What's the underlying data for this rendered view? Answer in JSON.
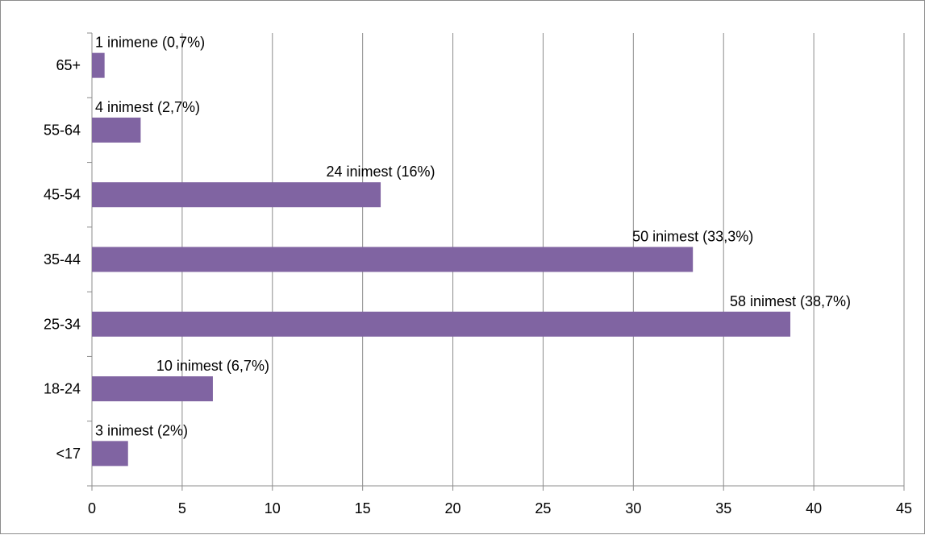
{
  "chart_data": {
    "type": "bar",
    "orientation": "horizontal",
    "categories": [
      "<17",
      "18-24",
      "25-34",
      "35-44",
      "45-54",
      "55-64",
      "65+"
    ],
    "values": [
      2,
      6.7,
      38.7,
      33.3,
      16,
      2.7,
      0.7
    ],
    "data_labels": [
      "3 inimest (2%)",
      "10 inimest (6,7%)",
      "58 inimest (38,7%)",
      "50 inimest (33,3%)",
      "24 inimest (16%)",
      "4 inimest (2,7%)",
      "1 inimene (0,7%)"
    ],
    "xlim": [
      0,
      45
    ],
    "x_ticks": [
      "0",
      "5",
      "10",
      "15",
      "20",
      "25",
      "30",
      "35",
      "40",
      "45"
    ],
    "grid": "vertical",
    "legend": "none",
    "title": "",
    "xlabel": "",
    "ylabel": "",
    "colors": {
      "bar": "#8064a2",
      "grid": "#8c8c8c",
      "axis": "#8c8c8c",
      "text": "#000000",
      "frame": "#8c8c8c"
    }
  }
}
